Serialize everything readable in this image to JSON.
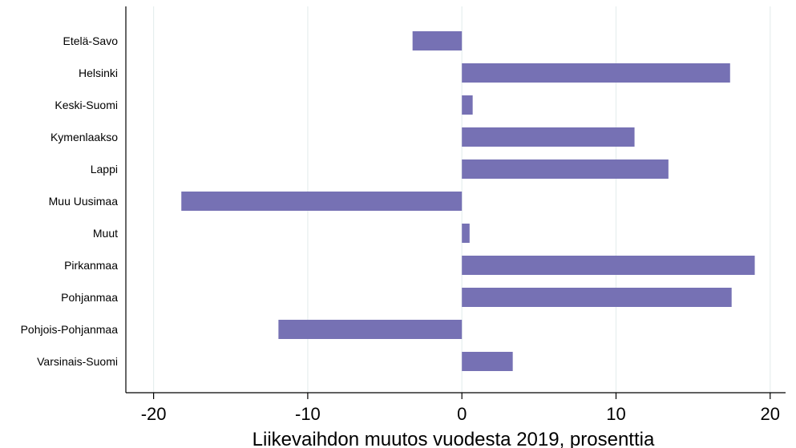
{
  "chart_data": {
    "type": "bar",
    "orientation": "horizontal",
    "categories": [
      "Etelä-Savo",
      "Helsinki",
      "Keski-Suomi",
      "Kymenlaakso",
      "Lappi",
      "Muu Uusimaa",
      "Muut",
      "Pirkanmaa",
      "Pohjanmaa",
      "Pohjois-Pohjanmaa",
      "Varsinais-Suomi"
    ],
    "values": [
      -3.2,
      17.4,
      0.7,
      11.2,
      13.4,
      -18.2,
      0.5,
      19.0,
      17.5,
      -11.9,
      3.3
    ],
    "xlabel": "Liikevaihdon muutos vuodesta 2019, prosenttia",
    "ylabel": "",
    "xlim": [
      -21.8,
      21.0
    ],
    "xticks": [
      -20,
      -10,
      0,
      10,
      20
    ],
    "xtick_labels": [
      "-20",
      "-10",
      "0",
      "10",
      "20"
    ],
    "grid": true,
    "bar_color": "#7671b4",
    "grid_color": "#e6eeee"
  }
}
